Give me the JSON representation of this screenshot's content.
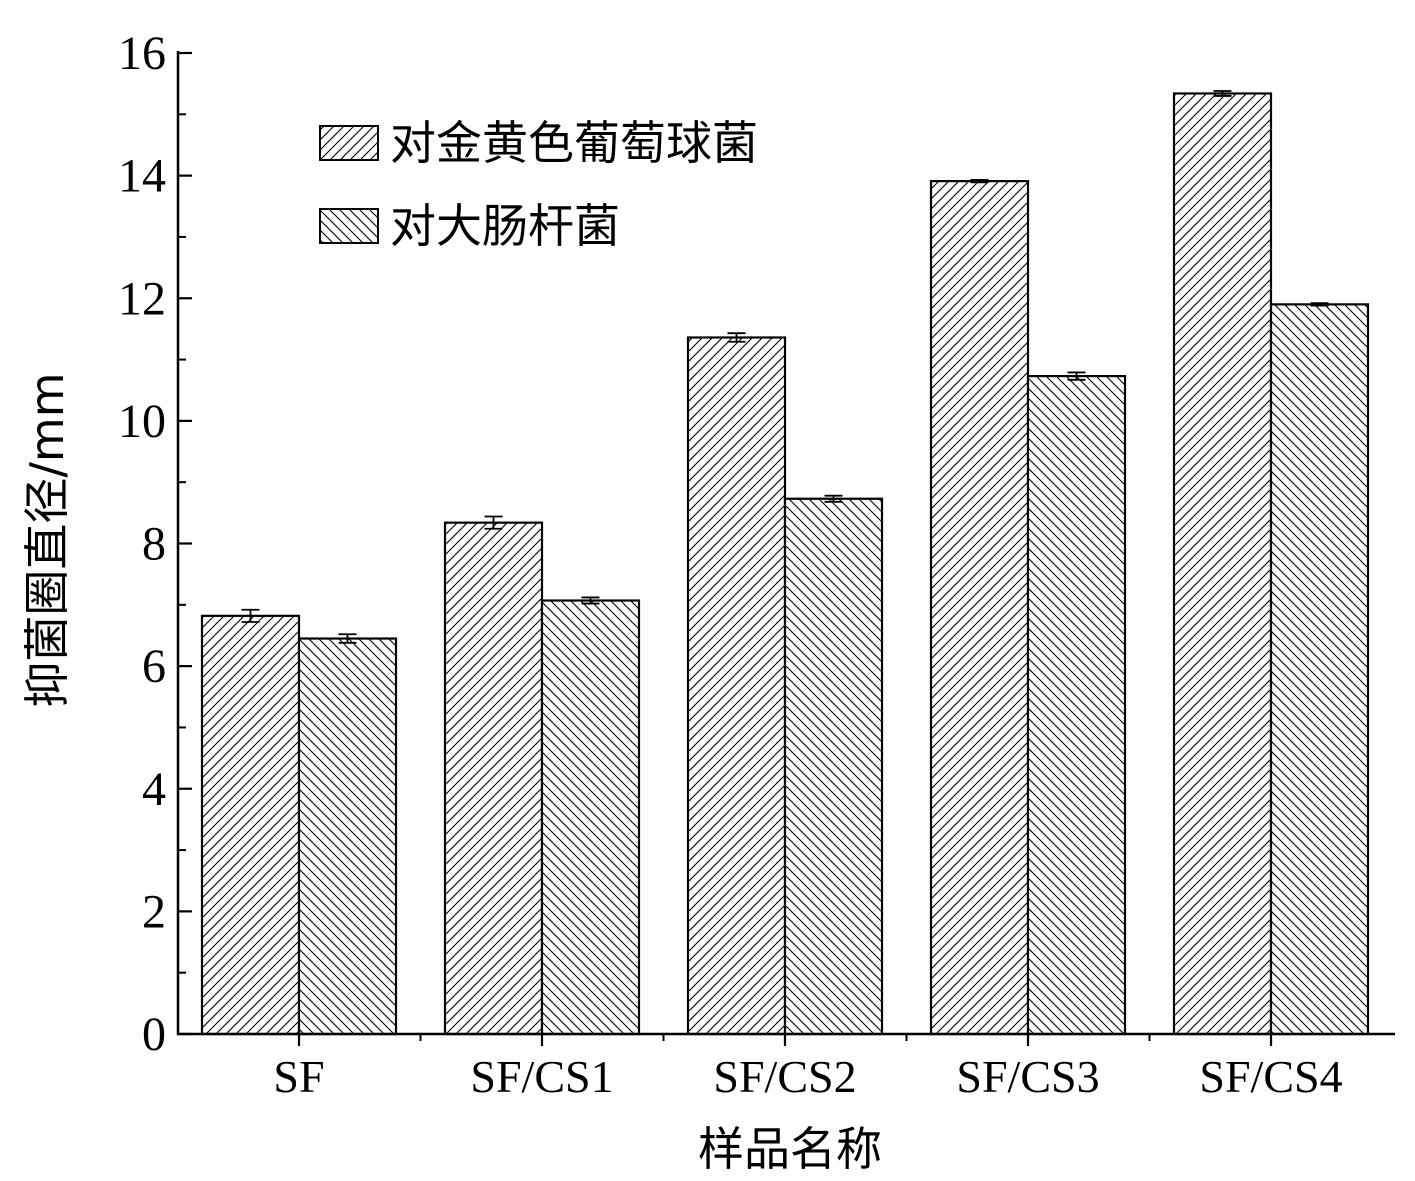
{
  "chart_data": {
    "type": "bar",
    "title": "",
    "xlabel": "样品名称",
    "ylabel": "抑菌圈直径/mm",
    "categories": [
      "SF",
      "SF/CS1",
      "SF/CS2",
      "SF/CS3",
      "SF/CS4"
    ],
    "ylim": [
      0,
      16
    ],
    "yticks": [
      0,
      2,
      4,
      6,
      8,
      10,
      12,
      14,
      16
    ],
    "ytick_labels": [
      "0",
      "2",
      "4",
      "6",
      "8",
      "10",
      "12",
      "14",
      "16"
    ],
    "grid": false,
    "legend_position": "top-left",
    "series": [
      {
        "name": "对金黄色葡萄球菌",
        "hatch": "forward-diagonal",
        "values": [
          6.82,
          8.34,
          11.36,
          13.91,
          15.34
        ],
        "errors": [
          0.1,
          0.1,
          0.07,
          0.02,
          0.04
        ]
      },
      {
        "name": "对大肠杆菌",
        "hatch": "backward-diagonal",
        "values": [
          6.45,
          7.07,
          8.73,
          10.73,
          11.9
        ],
        "errors": [
          0.07,
          0.05,
          0.05,
          0.06,
          0.02
        ]
      }
    ]
  }
}
